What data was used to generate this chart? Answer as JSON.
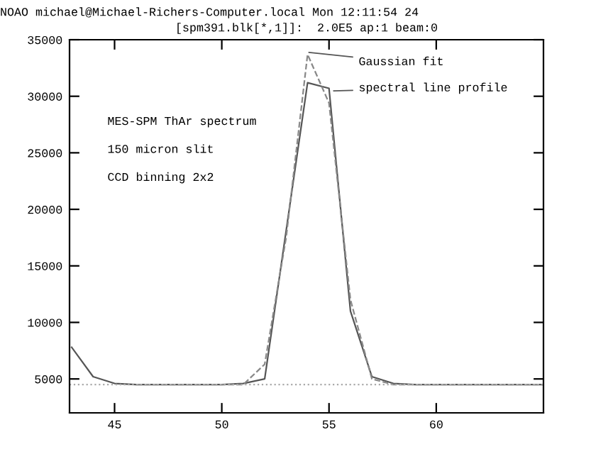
{
  "chart_data": {
    "type": "line",
    "title": "NOAO michael@Michael-Richers-Computer.local Mon 12:11:54 24",
    "subtitle": "[spm391.blk[*,1]]:  2.0E5 ap:1 beam:0",
    "series": [
      {
        "x": [
          43,
          44,
          45,
          46,
          47,
          48,
          49,
          50,
          51,
          52,
          53,
          54,
          55,
          56,
          57,
          58,
          59,
          60,
          61,
          62,
          63,
          64,
          65
        ],
        "values": [
          7800,
          5200,
          4600,
          4500,
          4500,
          4500,
          4500,
          4500,
          4600,
          5000,
          18100,
          31200,
          30700,
          11000,
          5200,
          4600,
          4500,
          4500,
          4500,
          4500,
          4500,
          4500,
          4500
        ],
        "color": "#555555",
        "line_style": "solid"
      },
      {
        "x": [
          46,
          47,
          48,
          49,
          50,
          51,
          52,
          53,
          54,
          55,
          56,
          57,
          58,
          59,
          60,
          61,
          62,
          63,
          64,
          65
        ],
        "values": [
          4500,
          4500,
          4500,
          4500,
          4500,
          4500,
          6300,
          17500,
          33700,
          29400,
          12000,
          5000,
          4500,
          4500,
          4500,
          4500,
          4500,
          4500,
          4500,
          4500
        ],
        "color": "#888888",
        "line_style": "dashed"
      }
    ],
    "annotations": [
      "Gaussian fit",
      "spectral line profile",
      "MES-SPM ThAr spectrum",
      "150 micron slit",
      "CCD binning 2x2"
    ],
    "ref_lines": [
      {
        "axis": "y",
        "value": 4500,
        "color": "#aaaaaa",
        "line_style": "dotted"
      }
    ],
    "xlim": [
      42.9,
      65
    ],
    "ylim": [
      2000,
      35000
    ],
    "xticks": [
      45,
      50,
      55,
      60
    ],
    "yticks": [
      5000,
      10000,
      15000,
      20000,
      25000,
      30000,
      35000
    ],
    "grid": false,
    "legend": false,
    "marker": "none"
  }
}
